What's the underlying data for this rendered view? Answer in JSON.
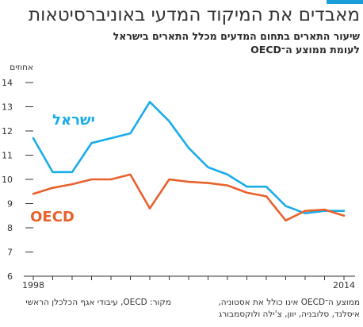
{
  "header": {
    "title": "מאבדים את המיקוד המדעי באוניברסיטאות",
    "subtitle_line1": "שיעור התארים בתחום המדעים מכלל התארים בישראל",
    "subtitle_line2": "לעומת ממוצע ה־OECD"
  },
  "footer": {
    "note_line1": "ממוצע ה־OECD אינו כולל את אסטוניה,",
    "note_line2": "איסלנד, סלובניה, יוון, צ'ילה ולוקסמבורג",
    "source": "מקור: OECD, עיבודי אגף הכלכלן הראשי"
  },
  "colors": {
    "israel": "#1aace8",
    "oecd": "#e8612c",
    "axis": "#333333",
    "accent": "#1a9ed9"
  },
  "chart_data": {
    "type": "line",
    "ylabel": "אחוזים",
    "ylim": [
      6,
      14
    ],
    "yticks": [
      6,
      7,
      8,
      9,
      10,
      11,
      12,
      13,
      14
    ],
    "x": [
      1998,
      1999,
      2000,
      2001,
      2002,
      2003,
      2004,
      2005,
      2006,
      2007,
      2008,
      2009,
      2010,
      2011,
      2012,
      2013,
      2014
    ],
    "xlim": [
      1998,
      2014
    ],
    "xtick_labels": [
      "1998",
      "2014"
    ],
    "series": [
      {
        "name": "ישראל",
        "color": "#1aace8",
        "values": [
          11.7,
          10.3,
          10.3,
          11.5,
          11.7,
          11.9,
          13.2,
          12.4,
          11.3,
          10.5,
          10.2,
          9.7,
          9.7,
          8.9,
          8.6,
          8.7,
          8.7
        ]
      },
      {
        "name": "OECD",
        "color": "#e8612c",
        "values": [
          9.4,
          9.65,
          9.8,
          10.0,
          10.0,
          10.2,
          8.8,
          10.0,
          9.9,
          9.85,
          9.75,
          9.45,
          9.3,
          8.3,
          8.7,
          8.75,
          8.5
        ]
      }
    ]
  }
}
